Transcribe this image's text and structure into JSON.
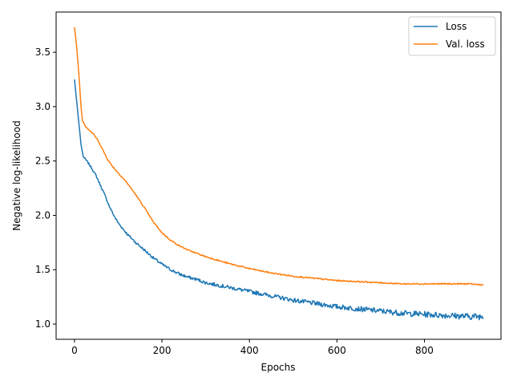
{
  "chart_data": {
    "type": "line",
    "title": "",
    "xlabel": "Epochs",
    "ylabel": "Negative log-likelihood",
    "xlim": [
      -42,
      975
    ],
    "ylim": [
      0.86,
      3.87
    ],
    "xticks": [
      0,
      200,
      400,
      600,
      800
    ],
    "xtick_labels": [
      "0",
      "200",
      "400",
      "600",
      "800"
    ],
    "yticks": [
      1.0,
      1.5,
      2.0,
      2.5,
      3.0,
      3.5
    ],
    "ytick_labels": [
      "1.0",
      "1.5",
      "2.0",
      "2.5",
      "3.0",
      "3.5"
    ],
    "grid": false,
    "legend_position": "top-right",
    "series": [
      {
        "name": "Loss",
        "color": "#1f77b4",
        "noise": 0.02,
        "x": [
          0,
          5,
          10,
          15,
          20,
          30,
          40,
          50,
          60,
          70,
          80,
          90,
          100,
          120,
          140,
          160,
          180,
          200,
          220,
          240,
          260,
          280,
          300,
          350,
          400,
          450,
          500,
          550,
          600,
          650,
          700,
          750,
          800,
          850,
          900,
          935
        ],
        "y": [
          3.25,
          3.05,
          2.85,
          2.65,
          2.54,
          2.49,
          2.43,
          2.36,
          2.27,
          2.18,
          2.08,
          2.0,
          1.93,
          1.83,
          1.75,
          1.68,
          1.61,
          1.55,
          1.5,
          1.46,
          1.43,
          1.41,
          1.38,
          1.34,
          1.3,
          1.26,
          1.22,
          1.19,
          1.16,
          1.14,
          1.12,
          1.1,
          1.09,
          1.08,
          1.07,
          1.07
        ]
      },
      {
        "name": "Val. loss",
        "color": "#ff7f0e",
        "noise": 0.006,
        "x": [
          0,
          5,
          10,
          15,
          18,
          25,
          35,
          45,
          55,
          65,
          75,
          85,
          100,
          120,
          140,
          160,
          180,
          200,
          220,
          240,
          260,
          280,
          300,
          350,
          400,
          450,
          500,
          550,
          600,
          650,
          700,
          750,
          800,
          850,
          900,
          935
        ],
        "y": [
          3.73,
          3.55,
          3.3,
          3.0,
          2.88,
          2.82,
          2.78,
          2.74,
          2.68,
          2.6,
          2.52,
          2.46,
          2.39,
          2.3,
          2.19,
          2.07,
          1.94,
          1.84,
          1.77,
          1.72,
          1.68,
          1.65,
          1.62,
          1.56,
          1.51,
          1.47,
          1.44,
          1.42,
          1.4,
          1.39,
          1.38,
          1.37,
          1.37,
          1.37,
          1.37,
          1.36
        ]
      }
    ]
  }
}
